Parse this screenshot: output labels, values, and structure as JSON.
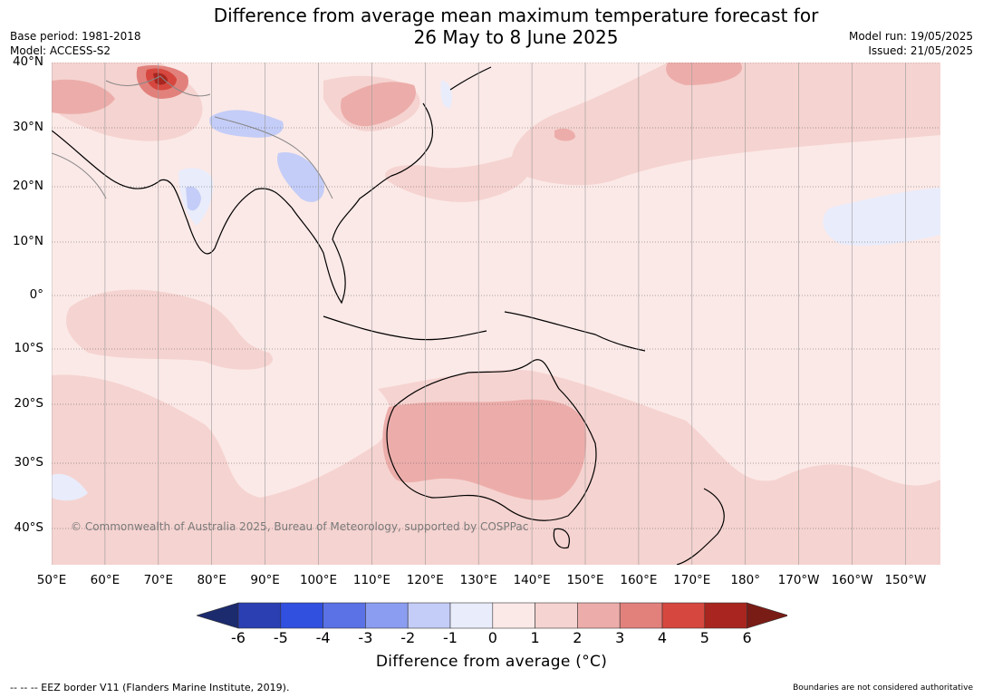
{
  "title": {
    "line1": "Difference from average mean maximum temperature forecast for",
    "line2": "26 May to 8 June 2025"
  },
  "meta_left": {
    "base_period": "Base period: 1981-2018",
    "model": "Model: ACCESS-S2"
  },
  "meta_right": {
    "model_run": "Model run: 19/05/2025",
    "issued": "Issued: 21/05/2025"
  },
  "map": {
    "latitude_labels": [
      "40°N",
      "30°N",
      "20°N",
      "10°N",
      "0°",
      "10°S",
      "20°S",
      "30°S",
      "40°S"
    ],
    "longitude_labels": [
      "50°E",
      "60°E",
      "70°E",
      "80°E",
      "90°E",
      "100°E",
      "110°E",
      "120°E",
      "130°E",
      "140°E",
      "150°E",
      "160°E",
      "170°E",
      "180°",
      "170°W",
      "160°W",
      "150°W"
    ],
    "copyright": "© Commonwealth of Australia 2025, Bureau of Meteorology, supported by COSPPac"
  },
  "colorbar": {
    "ticks": [
      "-6",
      "-5",
      "-4",
      "-3",
      "-2",
      "-1",
      "0",
      "1",
      "2",
      "3",
      "4",
      "5",
      "6"
    ],
    "colors": [
      "#1c2a6e",
      "#2b3fb3",
      "#3150e0",
      "#5a72e6",
      "#8b9df0",
      "#c4cdf7",
      "#e9ecfb",
      "#fbe9e7",
      "#f5d3d0",
      "#ecadaa",
      "#e2817c",
      "#d6483f",
      "#a8261f",
      "#7a1c16"
    ],
    "label": "Difference from average (°C)"
  },
  "footer": {
    "left": "--  --  -- EEZ border V11 (Flanders Marine Institute, 2019).",
    "right": "Boundaries are not considered authoritative"
  }
}
